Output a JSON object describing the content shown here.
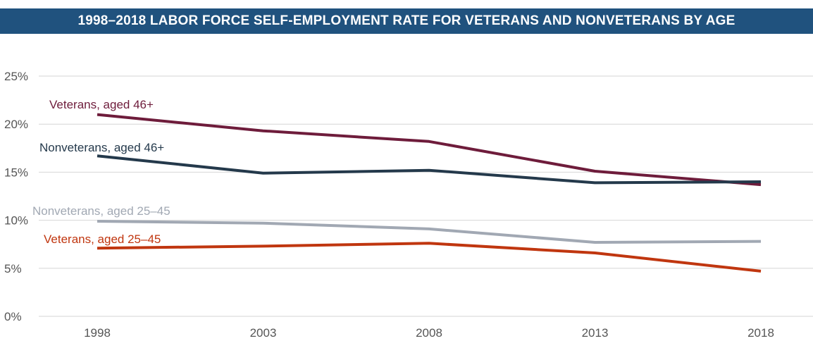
{
  "title": "1998–2018 LABOR FORCE SELF-EMPLOYMENT RATE FOR VETERANS AND NONVETERANS BY AGE",
  "chart_data": {
    "type": "line",
    "title": "1998–2018 LABOR FORCE SELF-EMPLOYMENT RATE FOR VETERANS AND NONVETERANS BY AGE",
    "x": [
      "1998",
      "2003",
      "2008",
      "2013",
      "2018"
    ],
    "ylim": [
      0,
      25
    ],
    "yticks": [
      0,
      5,
      10,
      15,
      20,
      25
    ],
    "ytick_labels": [
      "0%",
      "5%",
      "10%",
      "15%",
      "20%",
      "25%"
    ],
    "grid": true,
    "legend": "inline labels",
    "series": [
      {
        "name": "Veterans, aged 46+",
        "color": "#6e1c3b",
        "values": [
          21.0,
          19.3,
          18.2,
          15.1,
          13.7
        ]
      },
      {
        "name": "Nonveterans, aged 46+",
        "color": "#24394b",
        "values": [
          16.7,
          14.9,
          15.2,
          13.9,
          14.0
        ]
      },
      {
        "name": "Nonveterans, aged 25–45",
        "color": "#a1a8b3",
        "values": [
          9.9,
          9.7,
          9.1,
          7.7,
          7.8
        ]
      },
      {
        "name": "Veterans, aged 25–45",
        "color": "#c0360f",
        "values": [
          7.1,
          7.3,
          7.6,
          6.6,
          4.7
        ]
      }
    ]
  }
}
